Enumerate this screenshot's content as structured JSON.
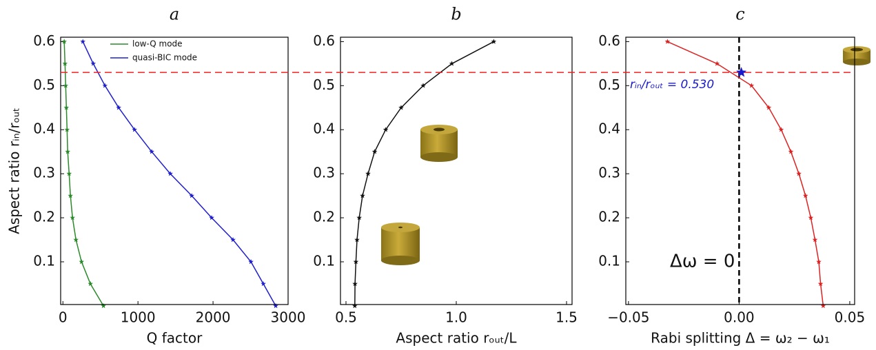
{
  "chart_data": [
    {
      "type": "line",
      "title": "a",
      "xlabel": "Q factor",
      "ylabel": "Aspect ratio rᵢₙ/rₒᵤₜ",
      "xlim": [
        -30,
        3000
      ],
      "ylim": [
        0.003,
        0.61
      ],
      "xticks": [
        0,
        1000,
        2000,
        3000
      ],
      "yticks": [
        0.1,
        0.2,
        0.3,
        0.4,
        0.5,
        0.6
      ],
      "legend": "upper center",
      "series": [
        {
          "name": "low-Q mode",
          "color": "#2a8a2a",
          "x": [
            540,
            367,
            248,
            174,
            128,
            100,
            83,
            64,
            55,
            46,
            37,
            28,
            18
          ],
          "values": [
            0.0,
            0.05,
            0.1,
            0.15,
            0.2,
            0.25,
            0.3,
            0.35,
            0.4,
            0.45,
            0.5,
            0.55,
            0.6
          ]
        },
        {
          "name": "quasi-BIC mode",
          "color": "#1f1fcc",
          "x": [
            2835,
            2670,
            2505,
            2266,
            1982,
            1716,
            1431,
            1183,
            954,
            743,
            560,
            404,
            266
          ],
          "values": [
            0.0,
            0.05,
            0.1,
            0.15,
            0.2,
            0.25,
            0.3,
            0.35,
            0.4,
            0.45,
            0.5,
            0.55,
            0.6
          ]
        }
      ]
    },
    {
      "type": "line",
      "title": "b",
      "xlabel": "Aspect ratio rₒᵤₜ/L",
      "xlim": [
        0.475,
        1.525
      ],
      "ylim": [
        0.003,
        0.61
      ],
      "xticks": [
        0.5,
        {
          "value": 1,
          "label": "1.0"
        },
        1.5
      ],
      "yticks": [
        0.1,
        0.2,
        0.3,
        0.4,
        0.5,
        0.6
      ],
      "series": [
        {
          "color": "#111111",
          "x": [
            0.54,
            0.541,
            0.545,
            0.55,
            0.56,
            0.575,
            0.6,
            0.63,
            0.68,
            0.75,
            0.85,
            0.98,
            1.17
          ],
          "values": [
            0.0,
            0.05,
            0.1,
            0.15,
            0.2,
            0.25,
            0.3,
            0.35,
            0.4,
            0.45,
            0.5,
            0.55,
            0.6
          ]
        }
      ]
    },
    {
      "type": "line",
      "title": "c",
      "xlabel": "Rabi splitting   Δ = ω₂ − ω₁",
      "xlim": [
        -0.0512,
        0.0522
      ],
      "ylim": [
        0.003,
        0.61
      ],
      "xticks": [
        {
          "value": -0.05,
          "label": "−0.05"
        },
        {
          "value": 0,
          "label": "0.00"
        },
        {
          "value": 0.05,
          "label": "0.05"
        }
      ],
      "yticks": [
        0.1,
        0.2,
        0.3,
        0.4,
        0.5,
        0.6
      ],
      "series": [
        {
          "color": "#dd2222",
          "x": [
            0.038,
            0.0368,
            0.036,
            0.0343,
            0.0324,
            0.03,
            0.027,
            0.0234,
            0.019,
            0.0134,
            0.0056,
            -0.01,
            -0.0324
          ],
          "values": [
            0.0,
            0.05,
            0.1,
            0.15,
            0.2,
            0.25,
            0.3,
            0.35,
            0.4,
            0.45,
            0.5,
            0.55,
            0.6
          ]
        }
      ],
      "highlight": {
        "x": 0.001,
        "y": 0.53,
        "label": "rᵢₙ/rₒᵤₜ = 0.530"
      },
      "vline": {
        "x": 0,
        "label": "Δω = 0"
      }
    }
  ]
}
